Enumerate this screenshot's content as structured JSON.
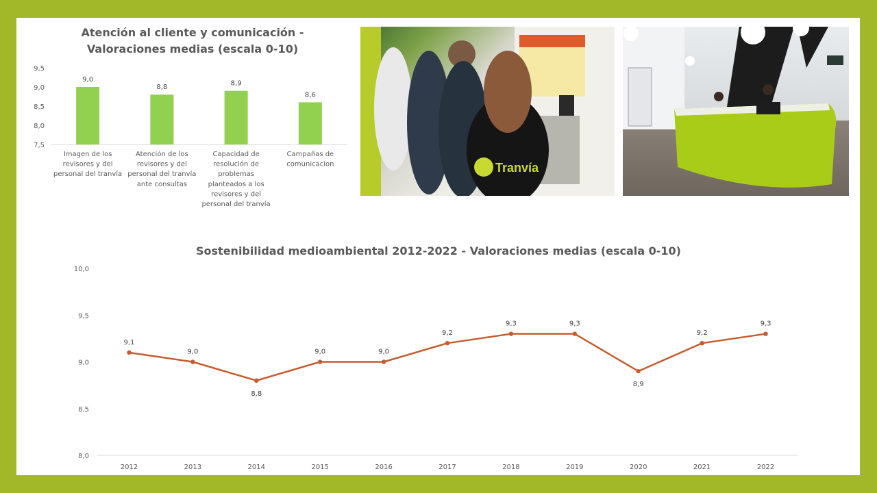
{
  "bar_title_line1": "Atención al cliente y comunicación -",
  "bar_title_line2": "Valoraciones medias (escala 0-10)",
  "line_title": "Sostenibilidad medioambiental 2012-2022 - Valoraciones medias (escala 0-10)",
  "photos": {
    "left": "tram-ticket-machine-photo",
    "right": "customer-service-desk-photo",
    "logo_text": "Tranvía"
  },
  "colors": {
    "frame": "#a2b829",
    "bar": "#92d050",
    "line": "#c65c2e"
  },
  "chart_data": [
    {
      "type": "bar",
      "title": "Atención al cliente y comunicación - Valoraciones medias (escala 0-10)",
      "categories": [
        [
          "Imagen de los",
          "revisores y del",
          "personal del tranvía"
        ],
        [
          "Atención de los",
          "revisores y del",
          "personal del tranvía",
          "ante consultas"
        ],
        [
          "Capacidad de",
          "resolución de",
          "problemas",
          "planteados a los",
          "revisores y del",
          "personal del tranvía"
        ],
        [
          "Campañas de",
          "comunicacion"
        ]
      ],
      "values": [
        9.0,
        8.8,
        8.9,
        8.6
      ],
      "data_labels": [
        "9,0",
        "8,8",
        "8,9",
        "8,6"
      ],
      "ylim": [
        7.5,
        9.5
      ],
      "yticks": [
        "9,5",
        "9,0",
        "8,5",
        "8,0",
        "7,5"
      ],
      "ytick_values": [
        9.5,
        9.0,
        8.5,
        8.0,
        7.5
      ],
      "grid": false,
      "legend": "none"
    },
    {
      "type": "line",
      "title": "Sostenibilidad medioambiental 2012-2022 - Valoraciones medias (escala 0-10)",
      "x": [
        "2012",
        "2013",
        "2014",
        "2015",
        "2016",
        "2017",
        "2018",
        "2019",
        "2020",
        "2021",
        "2022"
      ],
      "values": [
        9.1,
        9.0,
        8.8,
        9.0,
        9.0,
        9.2,
        9.3,
        9.3,
        8.9,
        9.2,
        9.3
      ],
      "data_labels": [
        "9,1",
        "9,0",
        "8,8",
        "9,0",
        "9,0",
        "9,2",
        "9,3",
        "9,3",
        "8,9",
        "9,2",
        "9,3"
      ],
      "ylim": [
        8.0,
        10.0
      ],
      "yticks": [
        "10,0",
        "9,5",
        "9,0",
        "8,5",
        "8,0"
      ],
      "ytick_values": [
        10.0,
        9.5,
        9.0,
        8.5,
        8.0
      ],
      "grid": false,
      "legend": "none"
    }
  ]
}
